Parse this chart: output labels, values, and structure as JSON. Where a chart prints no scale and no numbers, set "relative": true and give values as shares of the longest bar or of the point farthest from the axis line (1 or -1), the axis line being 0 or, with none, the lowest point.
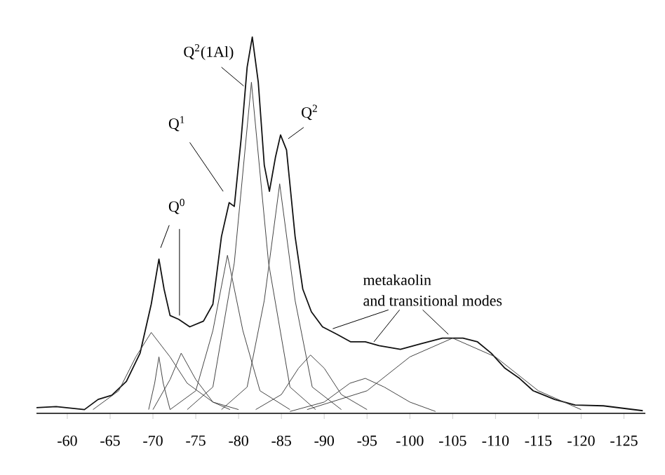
{
  "chart_data": {
    "type": "line",
    "relative": true,
    "xlim": [
      -56.4,
      -127.5
    ],
    "xticks": [
      -60,
      -65,
      -70,
      -75,
      -80,
      -85,
      -90,
      -95,
      -100,
      -105,
      -110,
      -115,
      -120,
      -125
    ],
    "tick_labels": "x",
    "grid": false,
    "marker": "none",
    "line_style": "solid",
    "annotations": [
      "Q$^{0}$",
      "Q$^{1}$",
      "Q$^{2}$(1Al)",
      "Q$^{2}$",
      "metakaolin",
      "and transitional modes"
    ],
    "series": [
      {
        "color": "#111111",
        "x": [
          -56.4,
          -58.7,
          -62,
          -63.6,
          -65.2,
          -66.9,
          -68.5,
          -69.8,
          -70.7,
          -71.3,
          -72,
          -73,
          -74.3,
          -75.9,
          -77,
          -78,
          -78.9,
          -79.5,
          -80.3,
          -81,
          -81.6,
          -82.3,
          -83,
          -83.6,
          -84.3,
          -84.9,
          -85.6,
          -86.6,
          -87.5,
          -88.5,
          -89.8,
          -91.5,
          -93.1,
          -94.8,
          -96.4,
          -98.9,
          -101.3,
          -103.8,
          -106.2,
          -107.9,
          -109.5,
          -111.1,
          -112.8,
          -114.4,
          -116.9,
          -119.3,
          -122.6,
          -127.2
        ],
        "values": [
          0.015,
          0.018,
          0.01,
          0.037,
          0.048,
          0.085,
          0.16,
          0.29,
          0.41,
          0.33,
          0.26,
          0.25,
          0.23,
          0.245,
          0.29,
          0.47,
          0.56,
          0.55,
          0.73,
          0.92,
          1.0,
          0.88,
          0.66,
          0.59,
          0.68,
          0.74,
          0.7,
          0.47,
          0.33,
          0.27,
          0.23,
          0.21,
          0.19,
          0.19,
          0.18,
          0.17,
          0.185,
          0.2,
          0.2,
          0.19,
          0.16,
          0.12,
          0.093,
          0.06,
          0.037,
          0.022,
          0.02,
          0.007
        ]
      },
      {
        "color": "#444444",
        "x": [
          -63,
          -66,
          -68,
          -69.8,
          -72,
          -74,
          -77,
          -80
        ],
        "values": [
          0.01,
          0.06,
          0.15,
          0.215,
          0.15,
          0.08,
          0.03,
          0.01
        ]
      },
      {
        "color": "#444444",
        "x": [
          -69.5,
          -70.2,
          -70.7,
          -71.2,
          -72
        ],
        "values": [
          0.01,
          0.08,
          0.15,
          0.08,
          0.01
        ]
      },
      {
        "color": "#444444",
        "x": [
          -70,
          -72,
          -73.3,
          -75,
          -77,
          -79
        ],
        "values": [
          0.01,
          0.09,
          0.16,
          0.09,
          0.03,
          0.01
        ]
      },
      {
        "color": "#444444",
        "x": [
          -72,
          -75,
          -77,
          -78.7,
          -80.5,
          -82.5,
          -86
        ],
        "values": [
          0.01,
          0.06,
          0.22,
          0.42,
          0.22,
          0.06,
          0.01
        ]
      },
      {
        "color": "#444444",
        "x": [
          -74,
          -77,
          -79.5,
          -81.5,
          -83.5,
          -86,
          -89
        ],
        "values": [
          0.01,
          0.07,
          0.4,
          0.88,
          0.4,
          0.07,
          0.01
        ]
      },
      {
        "color": "#444444",
        "x": [
          -78,
          -81,
          -83,
          -84.8,
          -86.6,
          -88.6,
          -92
        ],
        "values": [
          0.01,
          0.07,
          0.3,
          0.61,
          0.3,
          0.07,
          0.01
        ]
      },
      {
        "color": "#444444",
        "x": [
          -82,
          -85,
          -87,
          -88.4,
          -90,
          -92,
          -95
        ],
        "values": [
          0.01,
          0.05,
          0.12,
          0.155,
          0.12,
          0.05,
          0.01
        ]
      },
      {
        "color": "#444444",
        "x": [
          -86,
          -90,
          -93,
          -94.8,
          -97,
          -100,
          -103
        ],
        "values": [
          0.005,
          0.03,
          0.08,
          0.093,
          0.07,
          0.03,
          0.005
        ]
      },
      {
        "color": "#444444",
        "x": [
          -88,
          -95,
          -100,
          -105,
          -110,
          -115,
          -120
        ],
        "values": [
          0.01,
          0.06,
          0.15,
          0.2,
          0.15,
          0.06,
          0.01
        ]
      }
    ]
  }
}
